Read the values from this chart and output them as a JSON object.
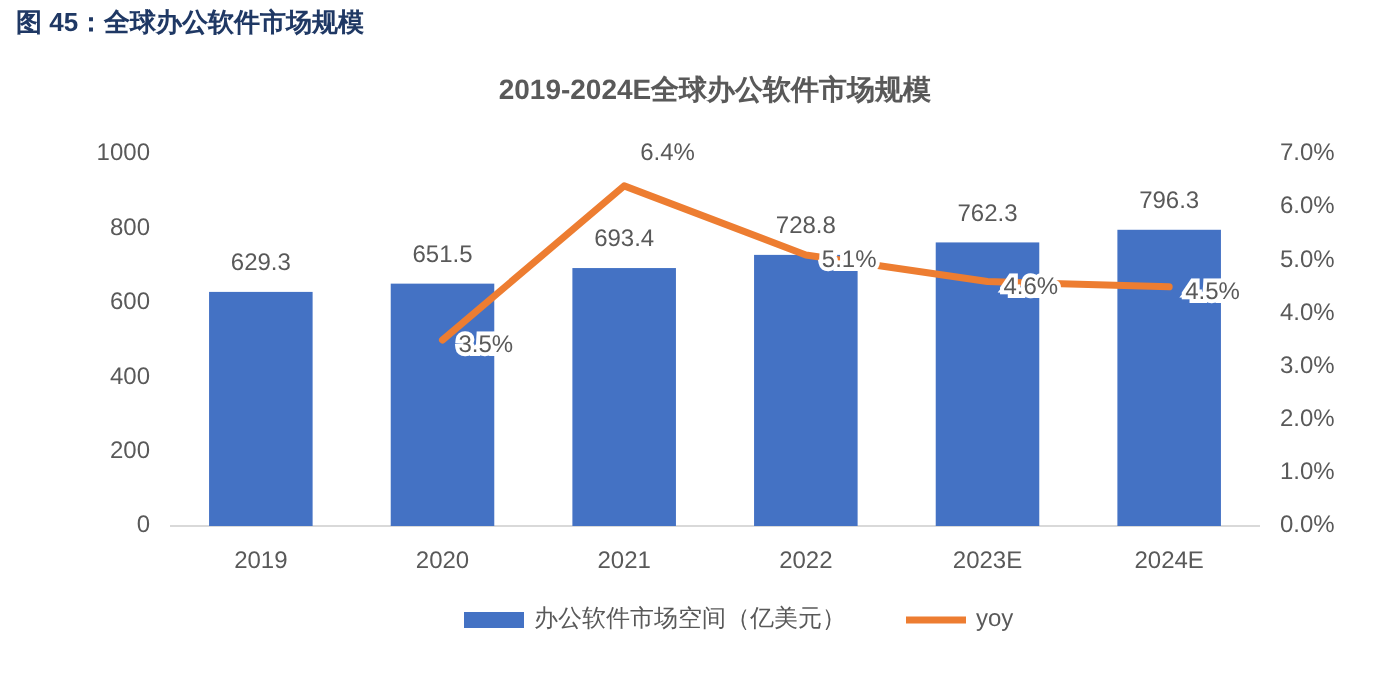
{
  "chart_data": {
    "type": "bar",
    "title": "2019-2024E全球办公软件市场规模",
    "annotations": [
      "图 45：全球办公软件市场规模"
    ],
    "categories": [
      "2019",
      "2020",
      "2021",
      "2022",
      "2023E",
      "2024E"
    ],
    "series": [
      {
        "name": "办公软件市场空间（亿美元）",
        "color": "#4472c4",
        "values": [
          629.3,
          651.5,
          693.4,
          728.8,
          762.3,
          796.3
        ],
        "value_labels": [
          "629.3",
          "651.5",
          "693.4",
          "728.8",
          "762.3",
          "796.3"
        ]
      },
      {
        "name": "yoy",
        "type": "line",
        "axis": "y2",
        "color": "#ed7d31",
        "values": [
          null,
          3.5,
          6.4,
          5.1,
          4.6,
          4.5
        ],
        "value_labels": [
          null,
          "3.5%",
          "6.4%",
          "5.1%",
          "4.6%",
          "4.5%"
        ]
      }
    ],
    "ylim": [
      0,
      1000
    ],
    "yticks": [
      0,
      200,
      400,
      600,
      800,
      1000
    ],
    "y2lim": [
      0,
      7
    ],
    "y2ticks": [
      {
        "value": 0,
        "label": "0.0%"
      },
      {
        "value": 1,
        "label": "1.0%"
      },
      {
        "value": 2,
        "label": "2.0%"
      },
      {
        "value": 3,
        "label": "3.0%"
      },
      {
        "value": 4,
        "label": "4.0%"
      },
      {
        "value": 5,
        "label": "5.0%"
      },
      {
        "value": 6,
        "label": "6.0%"
      },
      {
        "value": 7,
        "label": "7.0%"
      }
    ],
    "legend": "bottom",
    "marker": "none",
    "grid": false
  }
}
